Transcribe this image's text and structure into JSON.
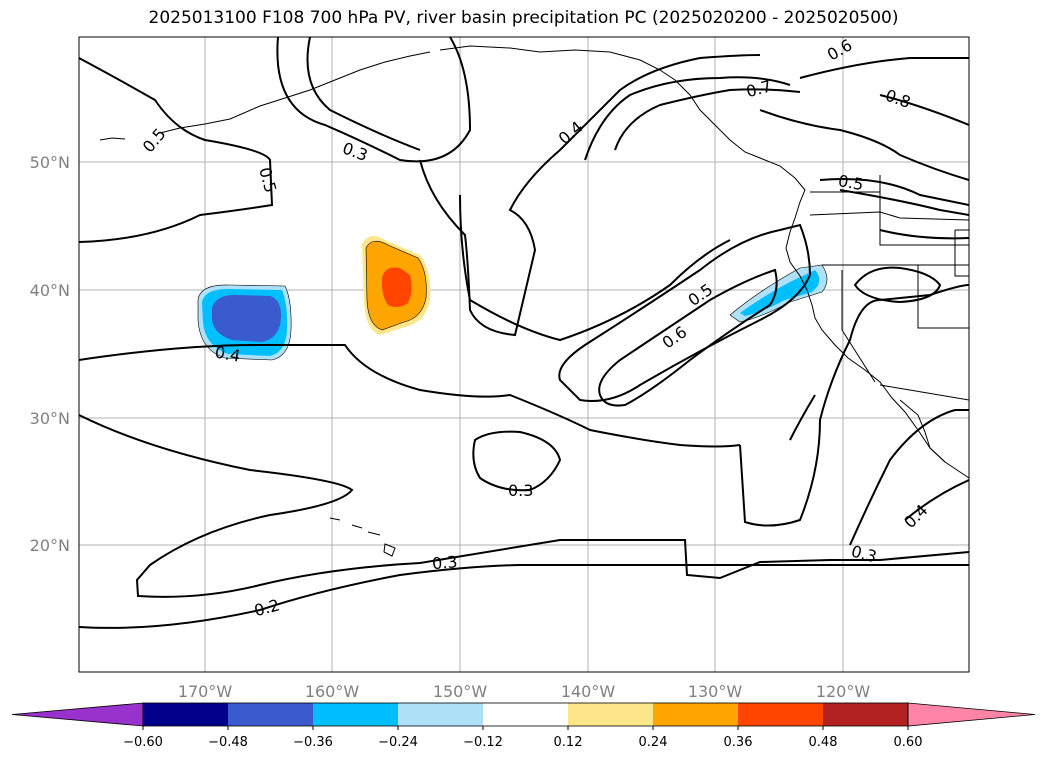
{
  "title": "2025013100 F108 700 hPa PV, river basin precipitation PC (2025020200 - 2025020500)",
  "map": {
    "lon_ticks": [
      "170°W",
      "160°W",
      "150°W",
      "140°W",
      "130°W",
      "120°W"
    ],
    "lat_ticks": [
      "50°N",
      "40°N",
      "30°N",
      "20°N"
    ],
    "contour_labels": [
      "0.5",
      "0.5",
      "0.3",
      "0.6",
      "0.7",
      "0.8",
      "0.4",
      "0.5",
      "0.5",
      "0.6",
      "0.4",
      "0.3",
      "0.3",
      "0.2",
      "0.3",
      "0.4"
    ]
  },
  "colorbar": {
    "ticks": [
      "−0.60",
      "−0.48",
      "−0.36",
      "−0.24",
      "−0.12",
      "0.12",
      "0.24",
      "0.36",
      "0.48",
      "0.60"
    ],
    "colors": [
      "#9932cc",
      "#00008b",
      "#3a5bcd",
      "#00bfff",
      "#aee0f8",
      "#ffffff",
      "#fde68a",
      "#ffa500",
      "#ff4500",
      "#b22222",
      "#ff85a8"
    ]
  }
}
